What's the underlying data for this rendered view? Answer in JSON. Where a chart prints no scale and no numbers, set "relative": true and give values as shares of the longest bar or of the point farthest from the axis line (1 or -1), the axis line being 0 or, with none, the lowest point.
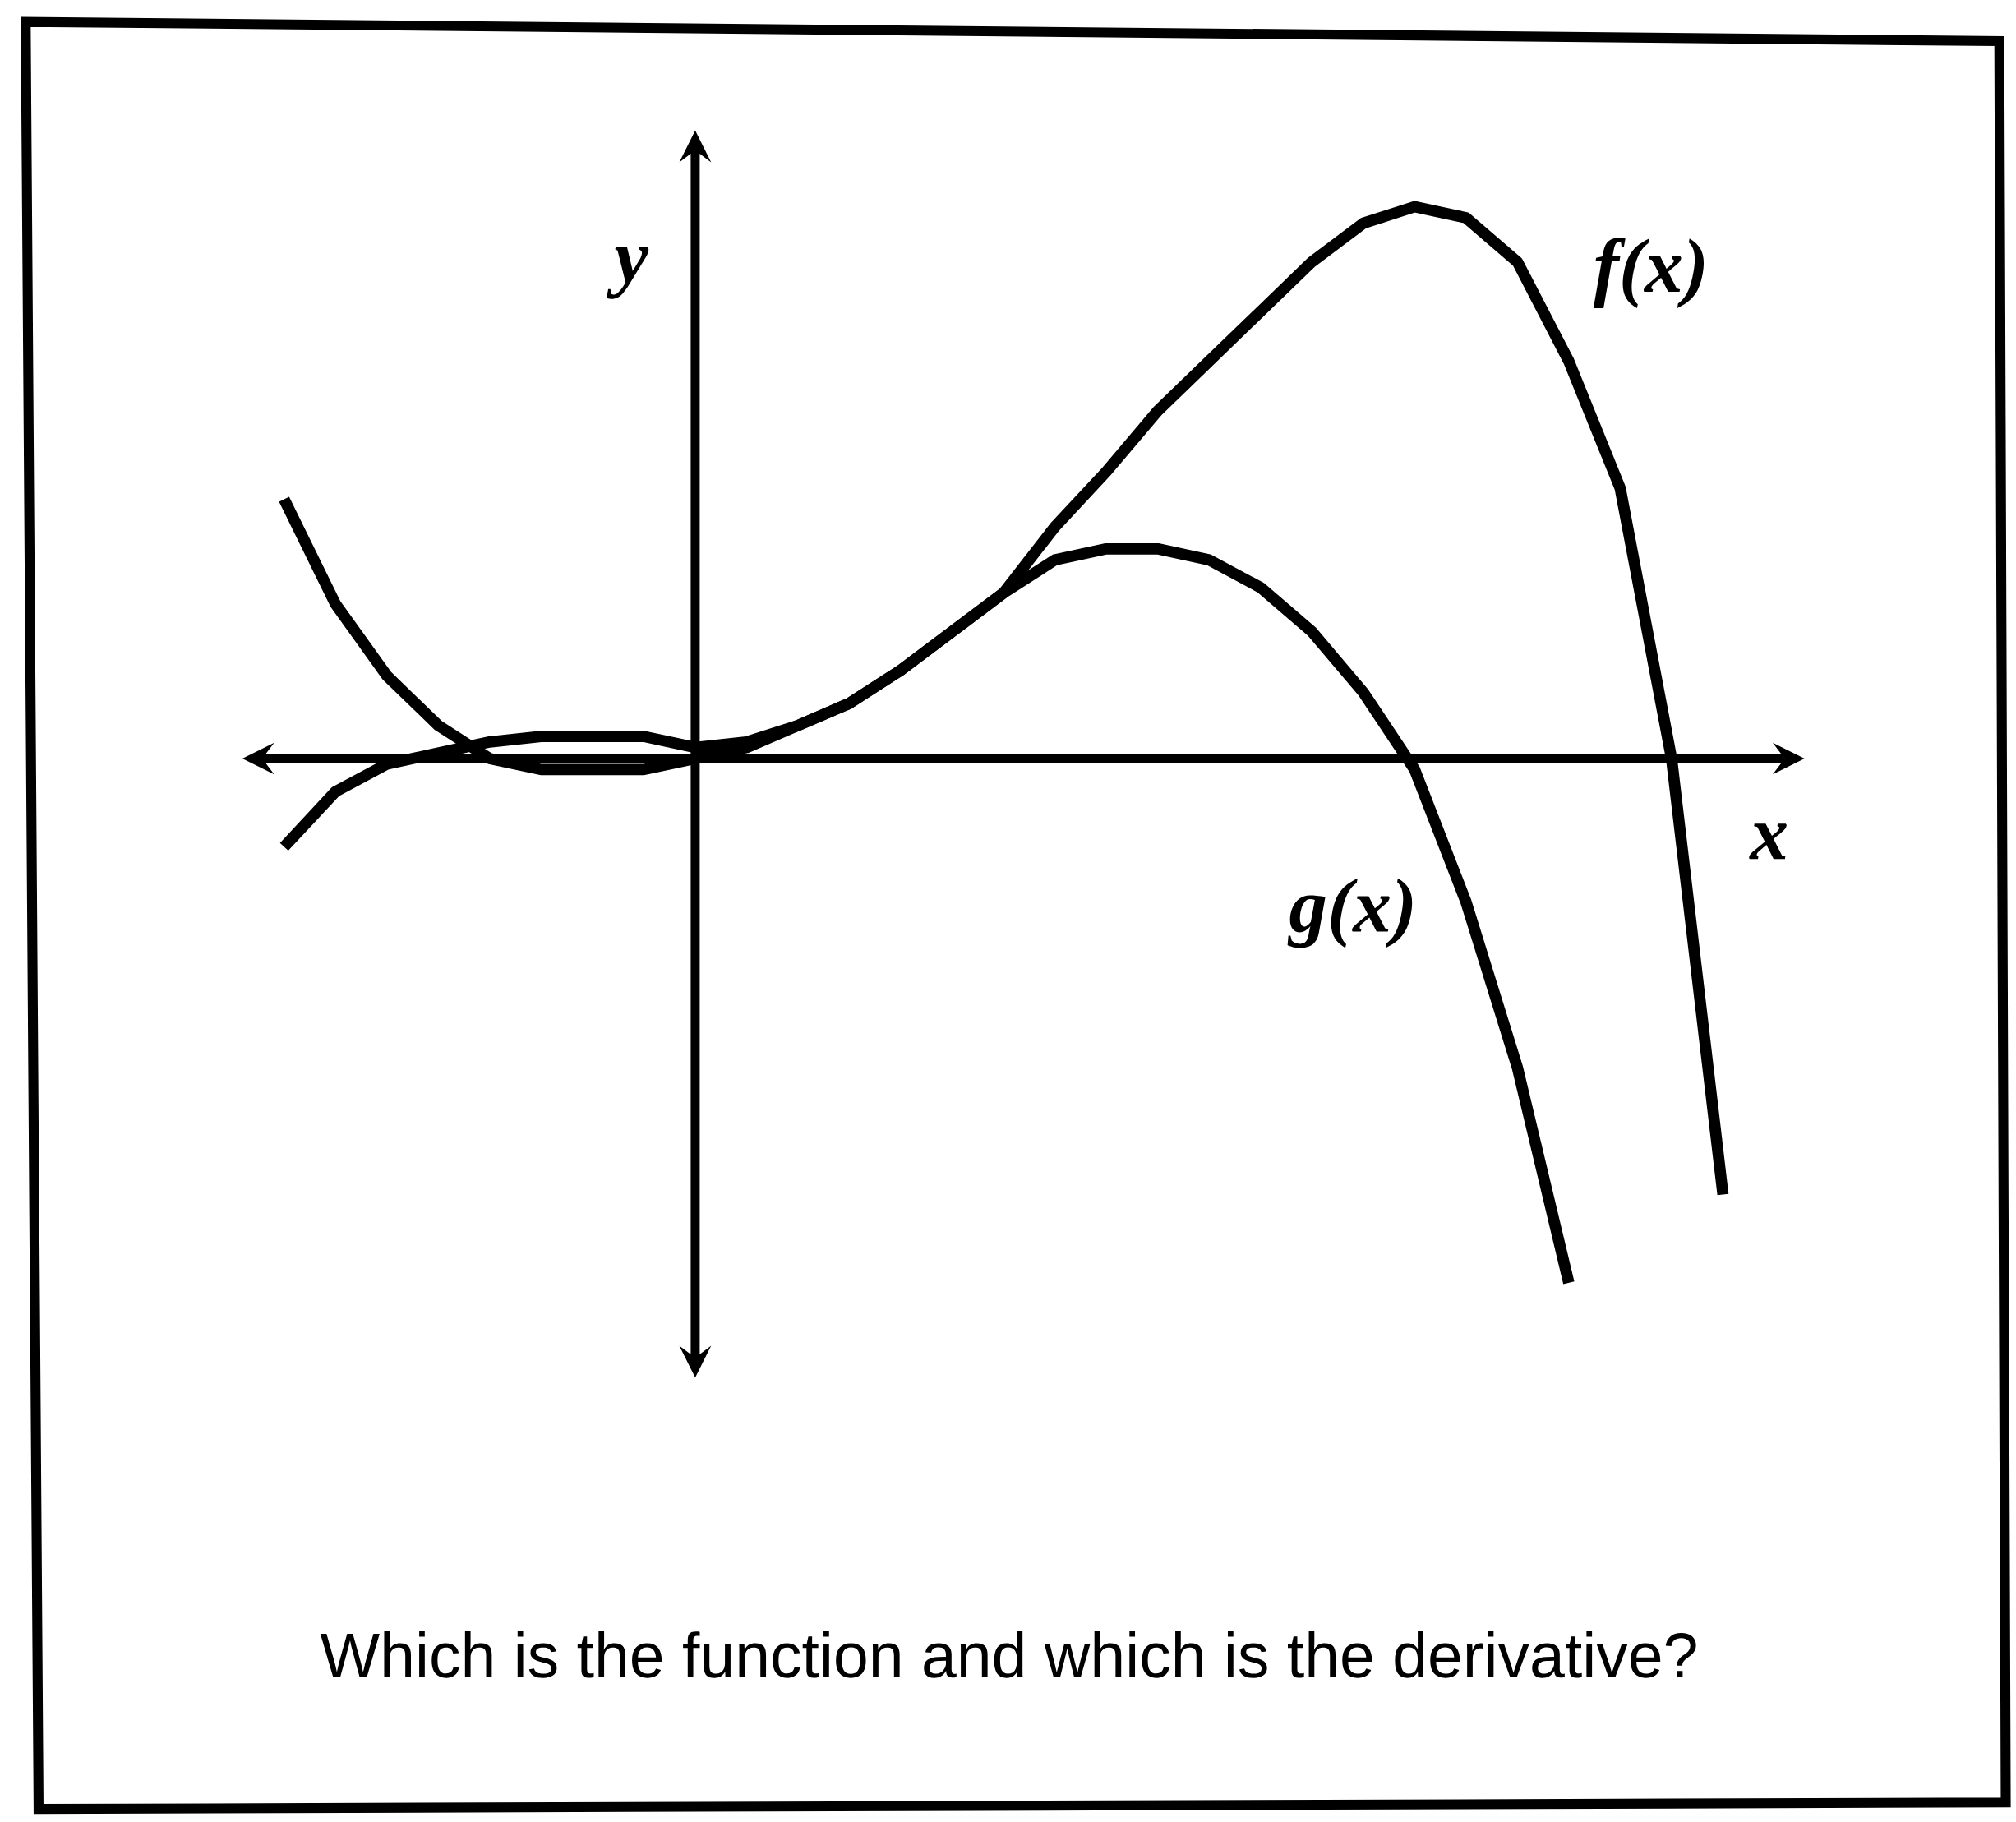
{
  "chart_data": {
    "type": "line",
    "relative": true,
    "xlabel": "x",
    "ylabel": "y",
    "categories": [
      null,
      null,
      null,
      null,
      null,
      null,
      null,
      null,
      null,
      null,
      null,
      null,
      null,
      null,
      null,
      null,
      null,
      null,
      null,
      null,
      null,
      null,
      null,
      null,
      null,
      null,
      null,
      null,
      null
    ],
    "series": [
      {
        "name": "f(x)",
        "color": "#000000",
        "values": [
          -0.16,
          -0.06,
          -0.01,
          0.01,
          0.03,
          0.04,
          0.04,
          0.04,
          0.02,
          0.03,
          0.06,
          0.1,
          0.16,
          0.23,
          0.3,
          0.42,
          0.52,
          0.63,
          0.72,
          0.81,
          0.9,
          0.97,
          1,
          0.98,
          0.9,
          0.72,
          0.49,
          0,
          -0.79
        ]
      },
      {
        "name": "g(x)",
        "color": "#000000",
        "values": [
          0.47,
          0.28,
          0.15,
          0.06,
          0,
          -0.02,
          -0.02,
          -0.02,
          0,
          0.02,
          0.06,
          0.1,
          0.16,
          0.23,
          0.3,
          0.36,
          0.38,
          0.38,
          0.36,
          0.31,
          0.23,
          0.12,
          -0.02,
          -0.26,
          -0.56,
          -0.95,
          null,
          null,
          null
        ]
      }
    ],
    "annotations": [
      "Which is the function and which is the derivative?"
    ]
  }
}
